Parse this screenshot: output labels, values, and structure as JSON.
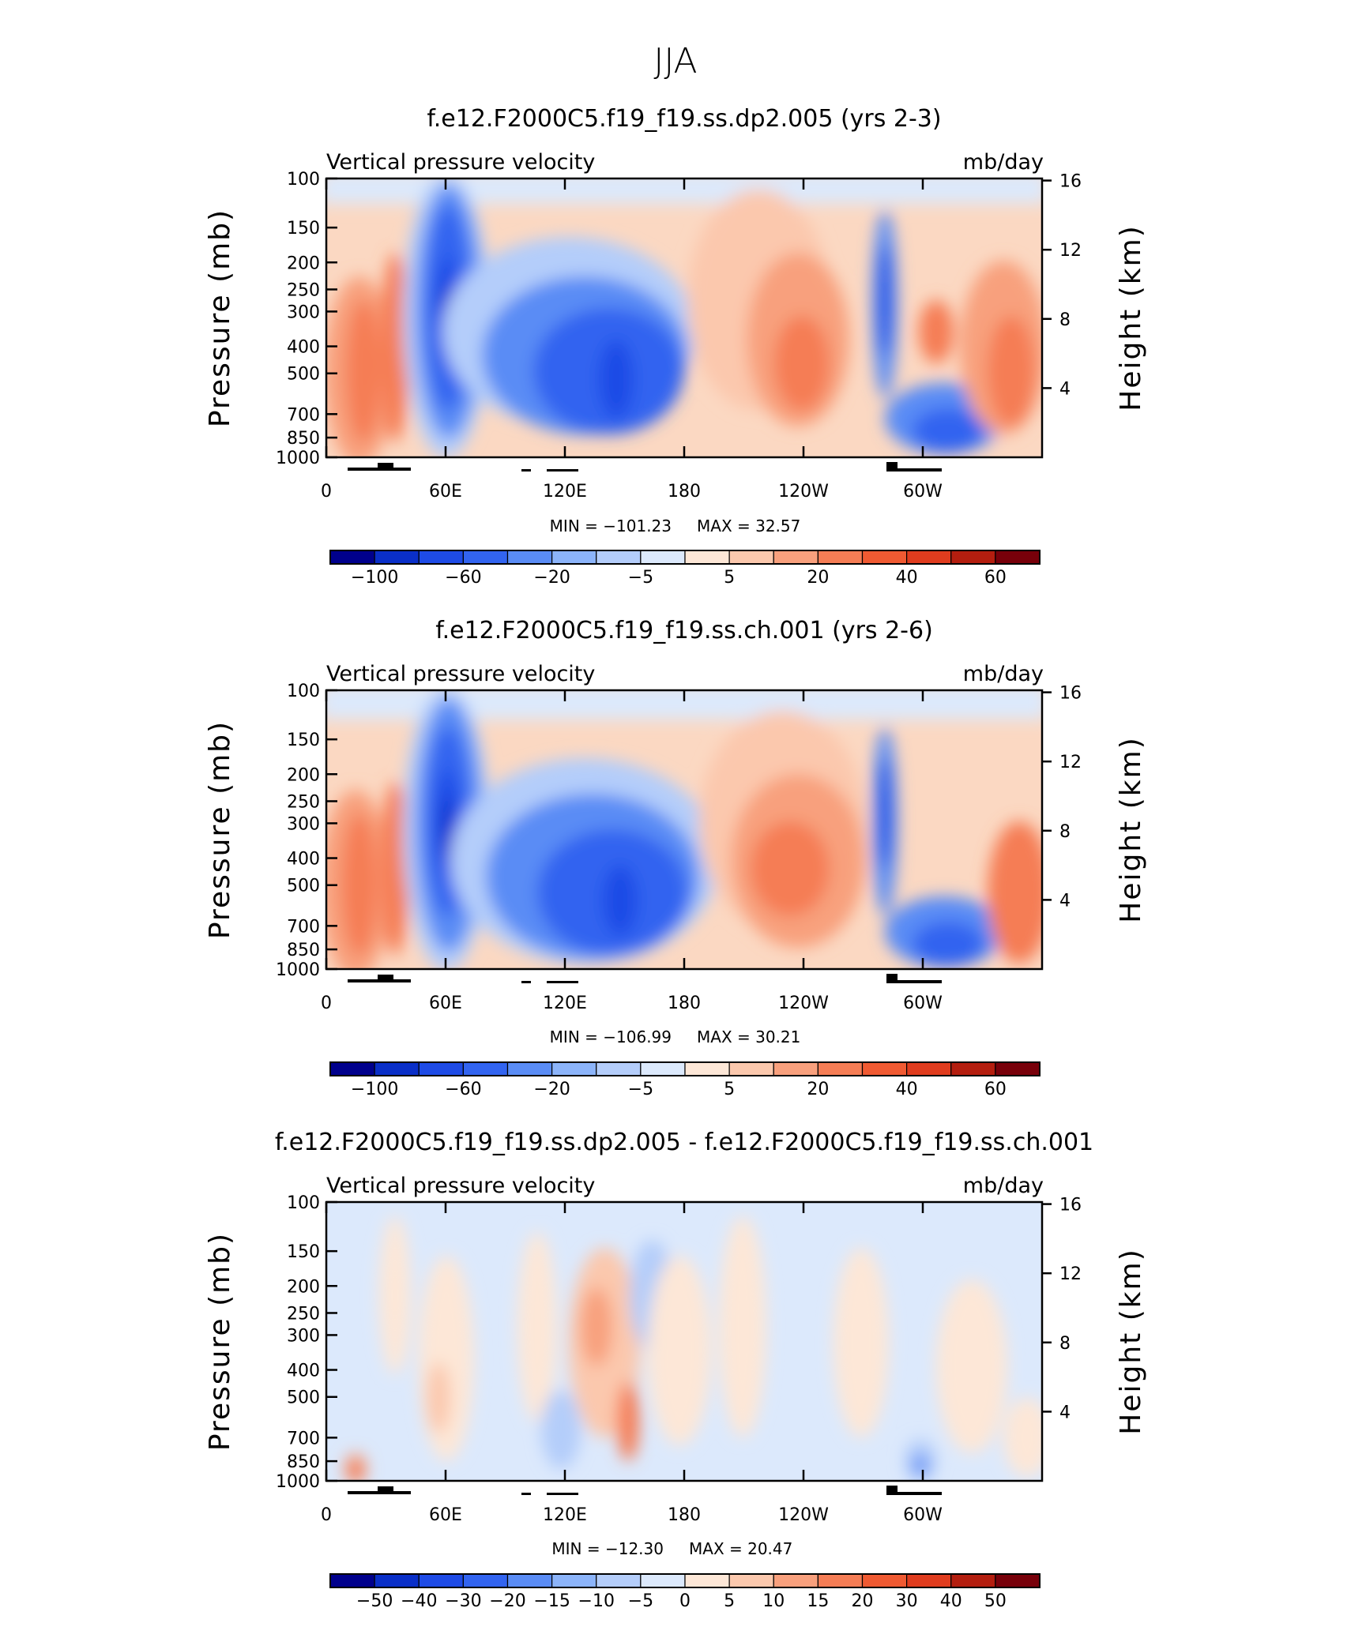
{
  "figure_title": "JJA",
  "chart_data": [
    {
      "type": "heatmap",
      "title": "f.e12.F2000C5.f19_f19.ss.dp2.005 (yrs 2-3)",
      "subtitle_left": "Vertical pressure velocity",
      "subtitle_right": "mb/day",
      "ylabel": "Pressure (mb)",
      "ylabel_right": "Height (km)",
      "x_ticks": [
        "0",
        "60E",
        "120E",
        "180",
        "120W",
        "60W"
      ],
      "y_ticks": [
        "100",
        "150",
        "200",
        "250",
        "300",
        "400",
        "500",
        "700",
        "850",
        "1000"
      ],
      "y_ticks_right": [
        "16",
        "12",
        "8",
        "4"
      ],
      "y_scale": "log",
      "min_text": "MIN =  −101.23",
      "max_text": "MAX =   32.57",
      "colorbar_labels": [
        "−100",
        "−60",
        "−20",
        "−5",
        "5",
        "20",
        "40",
        "60"
      ],
      "colorbar_levels": [
        -120,
        -100,
        -80,
        -60,
        -40,
        -20,
        -10,
        -5,
        0,
        5,
        10,
        20,
        30,
        40,
        50,
        60,
        80
      ],
      "features": [
        {
          "lon": 62,
          "p": 280,
          "value": -101.23
        },
        {
          "lon": 146,
          "p": 450,
          "value": -70
        },
        {
          "lon": 240,
          "p": 400,
          "value": 32.57
        },
        {
          "lon": 293,
          "p": 300,
          "value": -85
        },
        {
          "lon": 350,
          "p": 380,
          "value": 30
        },
        {
          "lon": 20,
          "p": 450,
          "value": 28
        }
      ]
    },
    {
      "type": "heatmap",
      "title": "f.e12.F2000C5.f19_f19.ss.ch.001 (yrs 2-6)",
      "subtitle_left": "Vertical pressure velocity",
      "subtitle_right": "mb/day",
      "ylabel": "Pressure (mb)",
      "ylabel_right": "Height (km)",
      "x_ticks": [
        "0",
        "60E",
        "120E",
        "180",
        "120W",
        "60W"
      ],
      "y_ticks": [
        "100",
        "150",
        "200",
        "250",
        "300",
        "400",
        "500",
        "700",
        "850",
        "1000"
      ],
      "y_ticks_right": [
        "16",
        "12",
        "8",
        "4"
      ],
      "y_scale": "log",
      "min_text": "MIN =  −106.99",
      "max_text": "MAX =   30.21",
      "colorbar_labels": [
        "−100",
        "−60",
        "−20",
        "−5",
        "5",
        "20",
        "40",
        "60"
      ],
      "colorbar_levels": [
        -120,
        -100,
        -80,
        -60,
        -40,
        -20,
        -10,
        -5,
        0,
        5,
        10,
        20,
        30,
        40,
        50,
        60,
        80
      ],
      "features": [
        {
          "lon": 62,
          "p": 290,
          "value": -106.99
        },
        {
          "lon": 148,
          "p": 480,
          "value": -75
        },
        {
          "lon": 230,
          "p": 420,
          "value": 30.21
        },
        {
          "lon": 293,
          "p": 300,
          "value": -80
        },
        {
          "lon": 350,
          "p": 500,
          "value": 28
        },
        {
          "lon": 18,
          "p": 450,
          "value": 28
        }
      ]
    },
    {
      "type": "heatmap",
      "title": "f.e12.F2000C5.f19_f19.ss.dp2.005 - f.e12.F2000C5.f19_f19.ss.ch.001",
      "subtitle_left": "Vertical pressure velocity",
      "subtitle_right": "mb/day",
      "ylabel": "Pressure (mb)",
      "ylabel_right": "Height (km)",
      "x_ticks": [
        "0",
        "60E",
        "120E",
        "180",
        "120W",
        "60W"
      ],
      "y_ticks": [
        "100",
        "150",
        "200",
        "250",
        "300",
        "400",
        "500",
        "700",
        "850",
        "1000"
      ],
      "y_ticks_right": [
        "16",
        "12",
        "8",
        "4"
      ],
      "y_scale": "log",
      "min_text": "MIN =  −12.30",
      "max_text": "MAX =   20.47",
      "colorbar_labels": [
        "−50",
        "−40",
        "−30",
        "−20",
        "−15",
        "−10",
        "−5",
        "0",
        "5",
        "10",
        "15",
        "20",
        "30",
        "40",
        "50"
      ],
      "colorbar_levels": [
        -60,
        -50,
        -40,
        -30,
        -20,
        -15,
        -10,
        -5,
        0,
        5,
        10,
        15,
        20,
        30,
        40,
        50,
        60
      ],
      "features": [
        {
          "lon": 152,
          "p": 600,
          "value": 20.47
        },
        {
          "lon": 143,
          "p": 260,
          "value": 15
        },
        {
          "lon": 163,
          "p": 270,
          "value": -12.3
        },
        {
          "lon": 117,
          "p": 650,
          "value": -10
        },
        {
          "lon": 298,
          "p": 780,
          "value": -10
        },
        {
          "lon": 16,
          "p": 800,
          "value": 15
        }
      ]
    }
  ],
  "colors": {
    "colorbar": [
      "#00008c",
      "#0a2fc8",
      "#1e4be6",
      "#3264f0",
      "#5a8cf5",
      "#8cb4fa",
      "#b4cdfa",
      "#dce9fc",
      "#fde7d7",
      "#fbc8ad",
      "#f8a07d",
      "#f57d55",
      "#f05a32",
      "#e03c1e",
      "#b41e0f",
      "#78000a"
    ],
    "topography": "#000000",
    "frame": "#000000"
  }
}
